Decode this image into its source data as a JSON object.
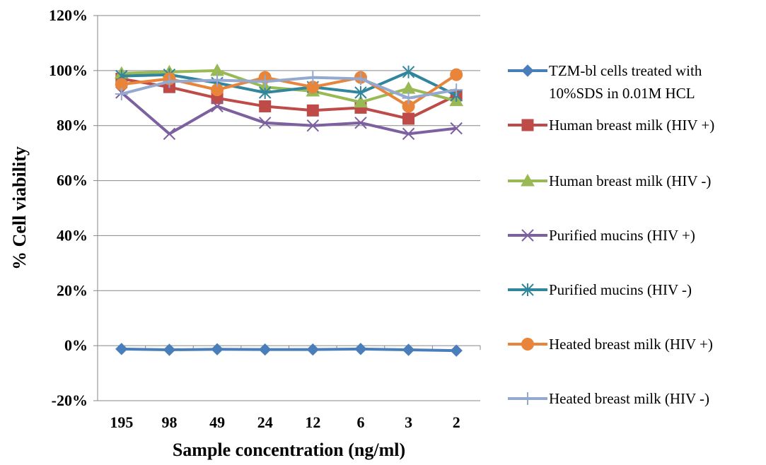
{
  "chart_data": {
    "type": "line",
    "title": "",
    "xlabel": "Sample concentration (ng/ml)",
    "ylabel": "% Cell viability",
    "categories": [
      "195",
      "98",
      "49",
      "24",
      "12",
      "6",
      "3",
      "2"
    ],
    "ylim": [
      -20,
      120
    ],
    "yticks": [
      -20,
      0,
      20,
      40,
      60,
      80,
      100,
      120
    ],
    "ytick_labels": [
      "-20%",
      "0%",
      "20%",
      "40%",
      "60%",
      "80%",
      "100%",
      "120%"
    ],
    "grid": "horizontal",
    "legend_position": "right",
    "series": [
      {
        "name": "TZM-bl cells treated with 10%SDS in 0.01M HCL",
        "legend_lines": [
          "TZM-bl cells treated with",
          "10%SDS in 0.01M HCL"
        ],
        "color": "#4a7ebb",
        "marker": "diamond",
        "values": [
          -1.2,
          -1.5,
          -1.3,
          -1.4,
          -1.4,
          -1.2,
          -1.5,
          -1.8
        ]
      },
      {
        "name": "Human breast milk (HIV +)",
        "legend_lines": [
          "Human breast milk (HIV +)"
        ],
        "color": "#be4b48",
        "marker": "square",
        "values": [
          97,
          94,
          90,
          87,
          85.5,
          86.5,
          82.5,
          91
        ]
      },
      {
        "name": "Human breast milk (HIV -)",
        "legend_lines": [
          "Human breast milk (HIV -)"
        ],
        "color": "#98b954",
        "marker": "triangle",
        "values": [
          99,
          99.5,
          100,
          94,
          92.5,
          88.5,
          93.5,
          89
        ]
      },
      {
        "name": "Purified  mucins (HIV +)",
        "legend_lines": [
          "Purified  mucins (HIV +)"
        ],
        "color": "#7d60a0",
        "marker": "x",
        "values": [
          92,
          77,
          87,
          81,
          80,
          81,
          77,
          79
        ]
      },
      {
        "name": "Purified  mucins (HIV -)",
        "legend_lines": [
          "Purified  mucins (HIV -)"
        ],
        "color": "#31859c",
        "marker": "star",
        "values": [
          98,
          98.5,
          95.5,
          92,
          94,
          92,
          99.5,
          91
        ]
      },
      {
        "name": "Heated breast milk (HIV +)",
        "legend_lines": [
          "Heated breast milk (HIV +)"
        ],
        "color": "#e8853b",
        "marker": "circle",
        "values": [
          95,
          97,
          93,
          97.5,
          94,
          97.5,
          87,
          98.5
        ]
      },
      {
        "name": "Heated breast milk (HIV -)",
        "legend_lines": [
          "Heated breast milk (HIV -)"
        ],
        "color": "#93a9cf",
        "marker": "plus",
        "values": [
          91.5,
          96,
          96.5,
          96,
          97.5,
          97,
          90,
          93
        ]
      }
    ]
  }
}
